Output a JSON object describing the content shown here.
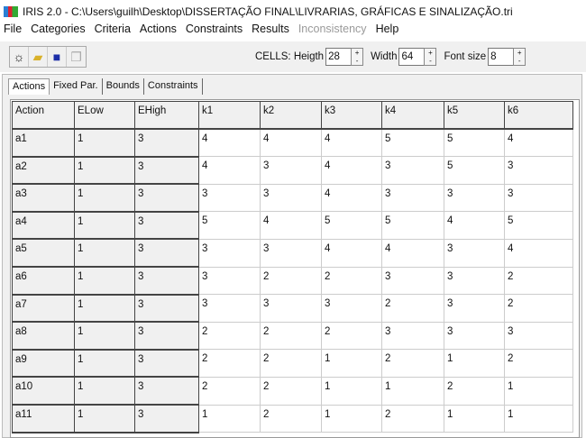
{
  "window": {
    "title": "IRIS 2.0  -  C:\\Users\\guilh\\Desktop\\DISSERTAÇÃO FINAL\\LIVRARIAS, GRÁFICAS E SINALIZAÇÃO.tri"
  },
  "menu": [
    {
      "label": "File",
      "enabled": true
    },
    {
      "label": "Categories",
      "enabled": true
    },
    {
      "label": "Criteria",
      "enabled": true
    },
    {
      "label": "Actions",
      "enabled": true
    },
    {
      "label": "Constraints",
      "enabled": true
    },
    {
      "label": "Results",
      "enabled": true
    },
    {
      "label": "Inconsistency",
      "enabled": false
    },
    {
      "label": "Help",
      "enabled": true
    }
  ],
  "toolbar": {
    "icons": [
      "new-file-icon",
      "open-folder-icon",
      "save-disk-icon",
      "copy-icon"
    ],
    "cells_label": "CELLS: Heigth",
    "height": "28",
    "width_label": "Width",
    "width": "64",
    "font_label": "Font size",
    "font_size": "8"
  },
  "tabs": [
    {
      "label": "Actions",
      "active": true
    },
    {
      "label": "Fixed Par.",
      "active": false
    },
    {
      "label": "Bounds",
      "active": false
    },
    {
      "label": "Constraints",
      "active": false
    }
  ],
  "grid": {
    "columns": [
      "Action",
      "ELow",
      "EHigh",
      "k1",
      "k2",
      "k3",
      "k4",
      "k5",
      "k6"
    ],
    "rows": [
      [
        "a1",
        "1",
        "3",
        "4",
        "4",
        "4",
        "5",
        "5",
        "4"
      ],
      [
        "a2",
        "1",
        "3",
        "4",
        "3",
        "4",
        "3",
        "5",
        "3"
      ],
      [
        "a3",
        "1",
        "3",
        "3",
        "3",
        "4",
        "3",
        "3",
        "3"
      ],
      [
        "a4",
        "1",
        "3",
        "5",
        "4",
        "5",
        "5",
        "4",
        "5"
      ],
      [
        "a5",
        "1",
        "3",
        "3",
        "3",
        "4",
        "4",
        "3",
        "4"
      ],
      [
        "a6",
        "1",
        "3",
        "3",
        "2",
        "2",
        "3",
        "3",
        "2"
      ],
      [
        "a7",
        "1",
        "3",
        "3",
        "3",
        "3",
        "2",
        "3",
        "2"
      ],
      [
        "a8",
        "1",
        "3",
        "2",
        "2",
        "2",
        "3",
        "3",
        "3"
      ],
      [
        "a9",
        "1",
        "3",
        "2",
        "2",
        "1",
        "2",
        "1",
        "2"
      ],
      [
        "a10",
        "1",
        "3",
        "2",
        "2",
        "1",
        "1",
        "2",
        "1"
      ],
      [
        "a11",
        "1",
        "3",
        "1",
        "2",
        "1",
        "2",
        "1",
        "1"
      ]
    ]
  }
}
